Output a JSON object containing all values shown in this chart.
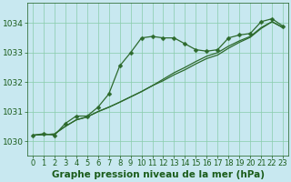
{
  "title": "Graphe pression niveau de la mer (hPa)",
  "background_color": "#c8e8f0",
  "plot_bg_color": "#c8e8f0",
  "grid_color": "#88ccaa",
  "line_color": "#2d6a2d",
  "xlim": [
    -0.5,
    23.5
  ],
  "ylim": [
    1029.5,
    1034.7
  ],
  "yticks": [
    1030,
    1031,
    1032,
    1033,
    1034
  ],
  "xticks": [
    0,
    1,
    2,
    3,
    4,
    5,
    6,
    7,
    8,
    9,
    10,
    11,
    12,
    13,
    14,
    15,
    16,
    17,
    18,
    19,
    20,
    21,
    22,
    23
  ],
  "series_main": [
    1030.2,
    1030.25,
    1030.2,
    1030.6,
    1030.85,
    1030.85,
    1031.15,
    1031.6,
    1032.55,
    1033.0,
    1033.5,
    1033.55,
    1033.5,
    1033.5,
    1033.3,
    1033.1,
    1033.05,
    1033.1,
    1033.5,
    1033.6,
    1033.65,
    1034.05,
    1034.15,
    1033.9
  ],
  "series_line2": [
    1030.2,
    1030.22,
    1030.24,
    1030.5,
    1030.72,
    1030.82,
    1031.0,
    1031.15,
    1031.32,
    1031.5,
    1031.68,
    1031.88,
    1032.1,
    1032.32,
    1032.5,
    1032.7,
    1032.88,
    1033.0,
    1033.22,
    1033.4,
    1033.55,
    1033.85,
    1034.05,
    1033.85
  ],
  "series_line3": [
    1030.2,
    1030.22,
    1030.24,
    1030.5,
    1030.72,
    1030.82,
    1031.0,
    1031.15,
    1031.32,
    1031.5,
    1031.68,
    1031.88,
    1032.05,
    1032.25,
    1032.42,
    1032.62,
    1032.8,
    1032.92,
    1033.15,
    1033.35,
    1033.52,
    1033.82,
    1034.05,
    1033.85
  ],
  "marker": "D",
  "markersize": 2.5,
  "linewidth": 0.9,
  "title_fontsize": 7.5,
  "tick_fontsize": 6.0,
  "tick_color": "#1a5c1a",
  "axis_color": "#1a5c1a",
  "ylabel_fontsize": 7,
  "figsize": [
    3.2,
    2.0
  ],
  "dpi": 100
}
